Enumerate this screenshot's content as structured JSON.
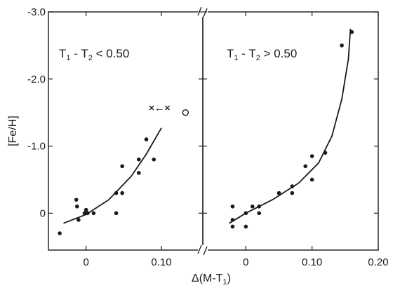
{
  "chart_data": [
    {
      "type": "scatter",
      "panel": "left",
      "annotation": {
        "T": "T",
        "s1": "1",
        "minus": " - ",
        "T2": "T",
        "s2": "2",
        "rel": " < 0.50"
      },
      "xlim": [
        -0.05,
        0.155
      ],
      "ylim": [
        0.55,
        -3.0
      ],
      "points": [
        {
          "x": -0.035,
          "y": 0.3
        },
        {
          "x": -0.013,
          "y": -0.2
        },
        {
          "x": -0.012,
          "y": -0.1
        },
        {
          "x": -0.01,
          "y": 0.1
        },
        {
          "x": -0.002,
          "y": 0.0
        },
        {
          "x": 0.0,
          "y": -0.05
        },
        {
          "x": 0.002,
          "y": 0.0
        },
        {
          "x": 0.01,
          "y": 0.0
        },
        {
          "x": 0.04,
          "y": 0.0
        },
        {
          "x": 0.04,
          "y": -0.3
        },
        {
          "x": 0.048,
          "y": -0.3
        },
        {
          "x": 0.048,
          "y": -0.7
        },
        {
          "x": 0.07,
          "y": -0.6
        },
        {
          "x": 0.07,
          "y": -0.8
        },
        {
          "x": 0.08,
          "y": -1.1
        },
        {
          "x": 0.09,
          "y": -0.8
        }
      ],
      "fit": [
        {
          "x": -0.03,
          "y": 0.15
        },
        {
          "x": 0.0,
          "y": 0.02
        },
        {
          "x": 0.03,
          "y": -0.2
        },
        {
          "x": 0.06,
          "y": -0.55
        },
        {
          "x": 0.08,
          "y": -0.88
        },
        {
          "x": 0.1,
          "y": -1.27
        }
      ],
      "open_point": {
        "x": 0.132,
        "y": -1.5
      },
      "x_marks": [
        {
          "x": 0.087,
          "y": -1.57
        },
        {
          "x": 0.108,
          "y": -1.57
        }
      ],
      "arrow": "←"
    },
    {
      "type": "scatter",
      "panel": "right",
      "annotation": {
        "T": "T",
        "s1": "1",
        "minus": " - ",
        "T2": "T",
        "s2": "2",
        "rel": " > 0.50"
      },
      "xlim": [
        -0.065,
        0.2
      ],
      "ylim": [
        0.55,
        -3.0
      ],
      "points": [
        {
          "x": -0.02,
          "y": -0.1
        },
        {
          "x": -0.02,
          "y": 0.1
        },
        {
          "x": -0.02,
          "y": 0.2
        },
        {
          "x": 0.0,
          "y": 0.0
        },
        {
          "x": 0.0,
          "y": 0.2
        },
        {
          "x": 0.01,
          "y": -0.1
        },
        {
          "x": 0.02,
          "y": 0.0
        },
        {
          "x": 0.02,
          "y": -0.1
        },
        {
          "x": 0.05,
          "y": -0.3
        },
        {
          "x": 0.07,
          "y": -0.4
        },
        {
          "x": 0.07,
          "y": -0.3
        },
        {
          "x": 0.09,
          "y": -0.7
        },
        {
          "x": 0.1,
          "y": -0.5
        },
        {
          "x": 0.1,
          "y": -0.85
        },
        {
          "x": 0.12,
          "y": -0.9
        },
        {
          "x": 0.145,
          "y": -2.5
        },
        {
          "x": 0.16,
          "y": -2.7
        }
      ],
      "fit": [
        {
          "x": -0.025,
          "y": 0.15
        },
        {
          "x": 0.0,
          "y": 0.0
        },
        {
          "x": 0.04,
          "y": -0.2
        },
        {
          "x": 0.08,
          "y": -0.45
        },
        {
          "x": 0.11,
          "y": -0.75
        },
        {
          "x": 0.13,
          "y": -1.15
        },
        {
          "x": 0.145,
          "y": -1.7
        },
        {
          "x": 0.155,
          "y": -2.3
        },
        {
          "x": 0.158,
          "y": -2.75
        }
      ]
    }
  ],
  "axes": {
    "ylabel": "[Fe/H]",
    "xlabel": "Δ(M-T",
    "xlabel_sub": "1",
    "xlabel_close": ")",
    "yticks": [
      {
        "v": -3.0,
        "label": "-3.0"
      },
      {
        "v": -2.0,
        "label": "-2.0"
      },
      {
        "v": -1.0,
        "label": "-1.0"
      },
      {
        "v": 0.0,
        "label": "0"
      }
    ],
    "left_xticks": [
      {
        "v": 0.0,
        "label": "0"
      },
      {
        "v": 0.1,
        "label": "0.10"
      }
    ],
    "right_xticks": [
      {
        "v": 0.0,
        "label": "0"
      },
      {
        "v": 0.1,
        "label": "0.10"
      },
      {
        "v": 0.2,
        "label": "0.20"
      }
    ]
  }
}
